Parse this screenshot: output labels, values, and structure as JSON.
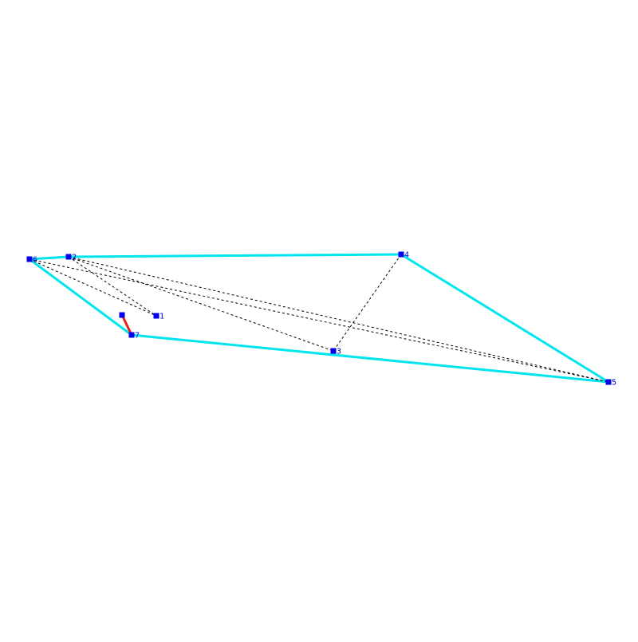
{
  "colors": {
    "hull": "#00e5ee",
    "inner": "#000000",
    "highlight": "#e8201a",
    "node": "#0000ee",
    "label": "#0000cc",
    "background": "#ffffff"
  },
  "nodes": [
    {
      "id": "1",
      "label": "1"
    },
    {
      "id": "2",
      "label": "2"
    },
    {
      "id": "3",
      "label": "3"
    },
    {
      "id": "4",
      "label": "4"
    },
    {
      "id": "5",
      "label": "5"
    },
    {
      "id": "6",
      "label": "6"
    },
    {
      "id": "7",
      "label": "7"
    },
    {
      "id": "u",
      "label": ""
    }
  ],
  "hull_edges": [
    [
      "6",
      "2"
    ],
    [
      "2",
      "4"
    ],
    [
      "4",
      "5"
    ],
    [
      "5",
      "7"
    ],
    [
      "7",
      "6"
    ]
  ],
  "inner_edges": [
    [
      "2",
      "1"
    ],
    [
      "2",
      "3"
    ],
    [
      "6",
      "1"
    ],
    [
      "6",
      "5"
    ],
    [
      "4",
      "3"
    ],
    [
      "2",
      "5"
    ]
  ],
  "highlight_edges": [
    [
      "u",
      "7"
    ]
  ]
}
